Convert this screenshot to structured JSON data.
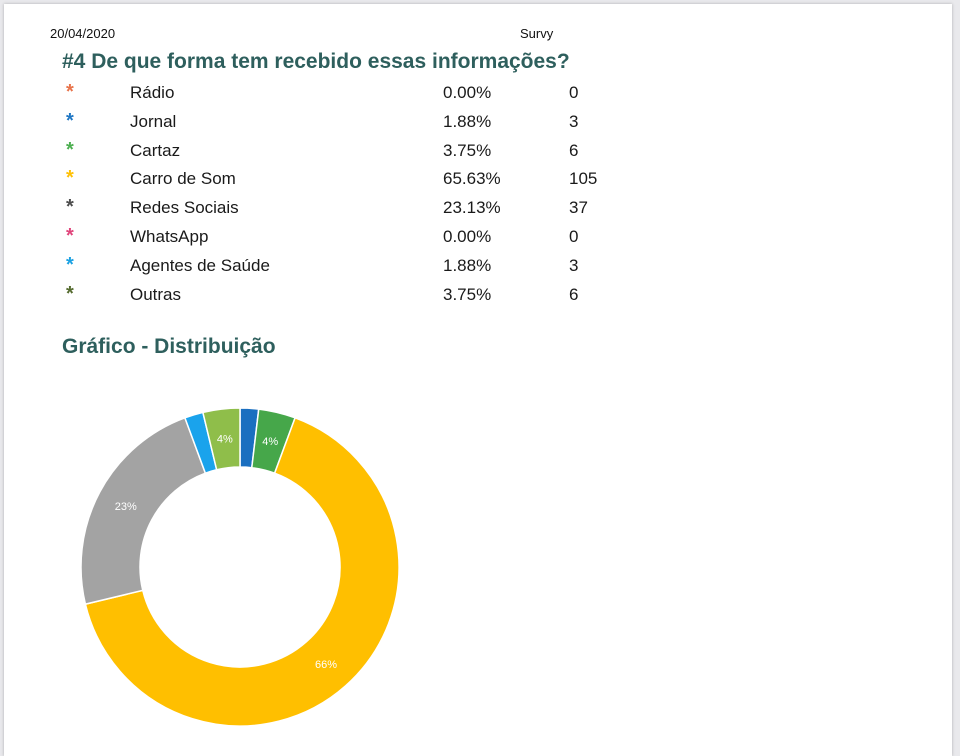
{
  "header": {
    "date": "20/04/2020",
    "app": "Survy"
  },
  "question": "#4 De que forma tem recebido essas informações?",
  "section_title": "Gráfico - Distribuição",
  "colors": {
    "heading": "#2e5f5d",
    "star_colors": [
      "#e8734a",
      "#1f77c4",
      "#4caf50",
      "#ffc107",
      "#4d4d4d",
      "#e0457b",
      "#1ba1e2",
      "#556b2f"
    ]
  },
  "rows": [
    {
      "star": "*",
      "label": "Rádio",
      "pct": "0.00%",
      "count": "0"
    },
    {
      "star": "*",
      "label": "Jornal",
      "pct": "1.88%",
      "count": "3"
    },
    {
      "star": "*",
      "label": "Cartaz",
      "pct": "3.75%",
      "count": "6"
    },
    {
      "star": "*",
      "label": "Carro de Som",
      "pct": "65.63%",
      "count": "105"
    },
    {
      "star": "*",
      "label": "Redes Sociais",
      "pct": "23.13%",
      "count": "37"
    },
    {
      "star": "*",
      "label": "WhatsApp",
      "pct": "0.00%",
      "count": "0"
    },
    {
      "star": "*",
      "label": "Agentes de Saúde",
      "pct": "1.88%",
      "count": "3"
    },
    {
      "star": "*",
      "label": "Outras",
      "pct": "3.75%",
      "count": "6"
    }
  ],
  "chart_data": {
    "type": "pie",
    "categories": [
      "Rádio",
      "Jornal",
      "Cartaz",
      "Carro de Som",
      "Redes Sociais",
      "WhatsApp",
      "Agentes de Saúde",
      "Outras"
    ],
    "values": [
      0,
      1.88,
      3.75,
      65.63,
      23.13,
      0,
      1.88,
      3.75
    ],
    "colors": [
      "#e8734a",
      "#1a6fc0",
      "#46a74a",
      "#ffbf00",
      "#a3a3a3",
      "#e0457b",
      "#1aa3ec",
      "#8fbe4a"
    ],
    "data_labels": [
      "",
      "",
      "4%",
      "66%",
      "23%",
      "",
      "",
      "4%"
    ],
    "donut": true
  }
}
